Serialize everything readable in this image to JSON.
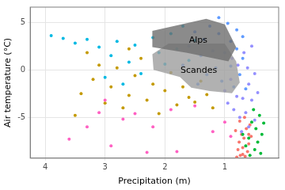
{
  "chart_data": {
    "type": "scatter",
    "x_label": "Precipitation (m)",
    "y_label": "Air temperature (°C)",
    "xlim": [
      4.25,
      0.1
    ],
    "ylim": [
      -9.3,
      6.6
    ],
    "xticks": [
      4,
      3,
      2,
      1
    ],
    "yticks": [
      -5,
      0,
      5
    ],
    "grid": true,
    "series": [
      {
        "color": "#FF61C3",
        "x": [
          3.6,
          2.9,
          2.3,
          1.8,
          3.1,
          2.7,
          2.2,
          1.9,
          1.5,
          3.0,
          2.5,
          1.2,
          1.0,
          0.9,
          3.3
        ],
        "values": [
          -7.3,
          -8,
          -8.7,
          -8.6,
          -4.5,
          -5.2,
          -6,
          -4.2,
          -3.8,
          -3.2,
          -4.6,
          -6.5,
          -5.5,
          -7,
          -6
        ]
      },
      {
        "color": "#C49A00",
        "x": [
          3.5,
          3.4,
          3.2,
          3.1,
          3.0,
          2.9,
          2.8,
          2.7,
          2.6,
          2.5,
          2.4,
          2.3,
          2.2,
          2.1,
          2.0,
          1.9,
          1.8,
          1.7,
          1.6,
          1.5,
          1.4,
          1.3,
          2.6,
          3.3,
          1.2
        ],
        "values": [
          -4.8,
          -2.5,
          -1,
          0.5,
          -3.5,
          -1.8,
          0.2,
          -4,
          -2.7,
          -0.6,
          1.2,
          -3.2,
          -1.5,
          -4.6,
          -2.2,
          -0.3,
          -3.7,
          -1.8,
          -2.9,
          -3.4,
          -1.2,
          -2.6,
          2.2,
          1.8,
          -4.0
        ]
      },
      {
        "color": "#00B9E3",
        "x": [
          3.9,
          3.7,
          3.5,
          3.3,
          3.1,
          2.9,
          2.8,
          2.6,
          2.5,
          2.4,
          2.2,
          2.1,
          2.0,
          1.9,
          1.8,
          1.7,
          1.6,
          1.5,
          3.0,
          2.7
        ],
        "values": [
          3.6,
          3.3,
          2.8,
          3.2,
          2.4,
          1.5,
          3.0,
          0.8,
          2.6,
          -0.4,
          3.4,
          1.8,
          0.6,
          3.8,
          2.2,
          4.6,
          1.0,
          3.1,
          -0.8,
          -1.5
        ]
      },
      {
        "color": "#619CFF",
        "x": [
          1.7,
          1.6,
          1.5,
          1.4,
          1.35,
          1.3,
          1.25,
          1.2,
          1.15,
          1.1,
          1.05,
          1.0,
          0.95,
          0.9,
          0.9,
          0.85,
          0.8,
          0.8,
          0.75,
          0.7,
          0.7,
          1.45,
          1.1,
          0.65
        ],
        "values": [
          0.5,
          2.5,
          4.0,
          1.5,
          3.2,
          -0.5,
          4.6,
          2.0,
          0.2,
          3.8,
          -1.2,
          1.8,
          4.9,
          0.4,
          3.0,
          -1.8,
          2.2,
          4.2,
          -0.5,
          1.2,
          3.5,
          -1.5,
          5.5,
          -2.0
        ]
      },
      {
        "color": "#9590FF",
        "x": [
          1.0,
          0.95,
          0.9,
          0.85,
          0.8,
          0.78,
          0.75,
          0.7,
          0.68,
          0.65,
          0.6,
          0.6,
          0.55,
          0.55,
          0.5,
          0.5,
          0.45,
          0.88,
          0.72,
          0.62
        ],
        "values": [
          -2.2,
          -3.5,
          -1.0,
          -4.2,
          -2.8,
          0.5,
          -5.0,
          -3.0,
          1.8,
          -4.5,
          -1.5,
          -6.0,
          -3.2,
          2.5,
          -5.3,
          -0.4,
          -2.4,
          1.2,
          -6.5,
          0.2
        ]
      },
      {
        "color": "#00BA38",
        "x": [
          0.7,
          0.65,
          0.6,
          0.58,
          0.55,
          0.5,
          0.48,
          0.45,
          0.42,
          0.4,
          0.38,
          0.52,
          0.35
        ],
        "values": [
          -6.8,
          -8.0,
          -7.2,
          -9.0,
          -5.5,
          -8.4,
          -6.2,
          -7.6,
          -4.8,
          -8.8,
          -6.8,
          -4.2,
          -5.6
        ]
      },
      {
        "color": "#F8766D",
        "x": [
          0.8,
          0.78,
          0.76,
          0.74,
          0.72,
          0.7,
          0.68,
          0.66,
          0.64,
          0.62,
          0.6,
          0.58,
          0.56,
          0.82,
          0.75,
          0.67,
          0.6,
          0.7
        ],
        "values": [
          -9.2,
          -8.4,
          -7.6,
          -9.0,
          -6.8,
          -8.2,
          -7.2,
          -9.1,
          -6.2,
          -8.6,
          -7.8,
          -5.8,
          -7.0,
          -6.4,
          -5.4,
          -5.0,
          -6.8,
          -8.9
        ]
      },
      {
        "name": "Scandes",
        "type": "polygon",
        "color": "#9e9e9e",
        "x": [
          1.75,
          1.56,
          1.25,
          0.88,
          0.75,
          0.81,
          1.0,
          1.94,
          2.21,
          2.19
        ],
        "values": [
          -0.75,
          -1.87,
          -2.24,
          -2.46,
          -1.34,
          0.9,
          2.76,
          2.76,
          1.64,
          0
        ]
      },
      {
        "name": "Alps",
        "type": "polygon",
        "color": "#6e6e6e",
        "x": [
          2.21,
          2.21,
          1.31,
          1.0,
          0.81,
          0.94,
          1.63
        ],
        "values": [
          2.39,
          4.1,
          5.37,
          4.78,
          2.39,
          0.9,
          1.79
        ]
      }
    ]
  }
}
